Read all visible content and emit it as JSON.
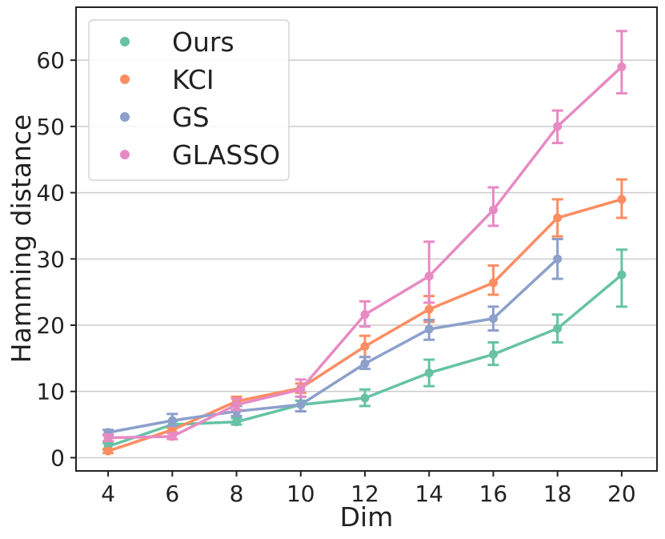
{
  "chart_data": {
    "type": "line",
    "title": "",
    "xlabel": "Dim",
    "ylabel": "Hamming distance",
    "x": [
      4,
      6,
      8,
      10,
      12,
      14,
      16,
      18,
      20
    ],
    "x_ticks": [
      "4",
      "6",
      "8",
      "10",
      "12",
      "14",
      "16",
      "18",
      "20"
    ],
    "xlim": [
      3.0,
      21.1
    ],
    "ylim": [
      -2,
      68
    ],
    "y_ticks": [
      "0",
      "10",
      "20",
      "30",
      "40",
      "50",
      "60"
    ],
    "y_tick_values": [
      0,
      10,
      20,
      30,
      40,
      50,
      60
    ],
    "grid": "horizontal",
    "legend_position": "top-left",
    "series": [
      {
        "name": "Ours",
        "color": "#66c2a5",
        "values": [
          1.7,
          5.0,
          5.4,
          8.0,
          9.0,
          12.8,
          15.6,
          19.5,
          27.6
        ],
        "err_low": [
          1.2,
          4.5,
          5.0,
          7.0,
          7.8,
          10.8,
          14.0,
          17.4,
          22.8
        ],
        "err_high": [
          2.2,
          5.5,
          6.0,
          8.6,
          10.3,
          14.8,
          17.4,
          21.6,
          31.4
        ]
      },
      {
        "name": "KCI",
        "color": "#fc8d62",
        "values": [
          1.0,
          4.2,
          8.5,
          10.5,
          16.8,
          22.4,
          26.4,
          36.2,
          39.0
        ],
        "err_low": [
          0.7,
          3.8,
          8.0,
          9.8,
          15.2,
          20.5,
          24.6,
          33.4,
          36.2
        ],
        "err_high": [
          1.3,
          4.6,
          9.2,
          11.2,
          18.4,
          24.4,
          29.0,
          39.0,
          42.0
        ]
      },
      {
        "name": "GS",
        "color": "#8da0cb",
        "values": [
          3.8,
          5.6,
          7.0,
          8.0,
          14.2,
          19.4,
          21.0,
          30.0,
          null
        ],
        "err_low": [
          3.4,
          4.8,
          6.3,
          7.0,
          13.4,
          17.8,
          19.2,
          27.0,
          null
        ],
        "err_high": [
          4.2,
          6.6,
          7.8,
          9.2,
          15.2,
          20.8,
          22.8,
          33.0,
          null
        ]
      },
      {
        "name": "GLASSO",
        "color": "#e78ac3",
        "values": [
          3.0,
          3.2,
          8.0,
          10.3,
          21.6,
          27.4,
          37.4,
          50.0,
          59.0
        ],
        "err_low": [
          2.5,
          2.8,
          7.2,
          9.2,
          19.8,
          23.4,
          35.0,
          47.5,
          55.0
        ],
        "err_high": [
          3.5,
          3.7,
          8.9,
          11.8,
          23.6,
          32.6,
          40.8,
          52.4,
          64.4
        ]
      }
    ]
  }
}
